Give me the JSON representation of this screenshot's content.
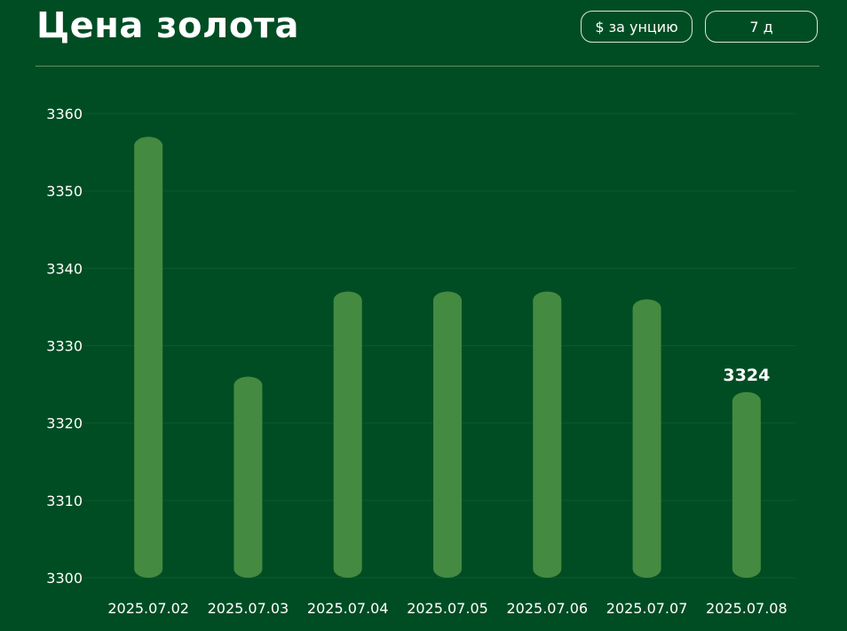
{
  "header": {
    "title": "Цена золота",
    "unit_button": "$ за унцию",
    "range_button": "7 д"
  },
  "colors": {
    "background": "#004d24",
    "bar": "#448a41",
    "grid": "#0e5a2e",
    "text": "#ffffff"
  },
  "chart_data": {
    "type": "bar",
    "categories": [
      "2025.07.02",
      "2025.07.03",
      "2025.07.04",
      "2025.07.05",
      "2025.07.06",
      "2025.07.07",
      "2025.07.08"
    ],
    "values": [
      3357,
      3326,
      3337,
      3337,
      3337,
      3336,
      3324
    ],
    "ylim": [
      3300,
      3360
    ],
    "yticks": [
      3300,
      3310,
      3320,
      3330,
      3340,
      3350,
      3360
    ],
    "highlight_label": "3324",
    "highlight_index": 6,
    "grid": true
  }
}
